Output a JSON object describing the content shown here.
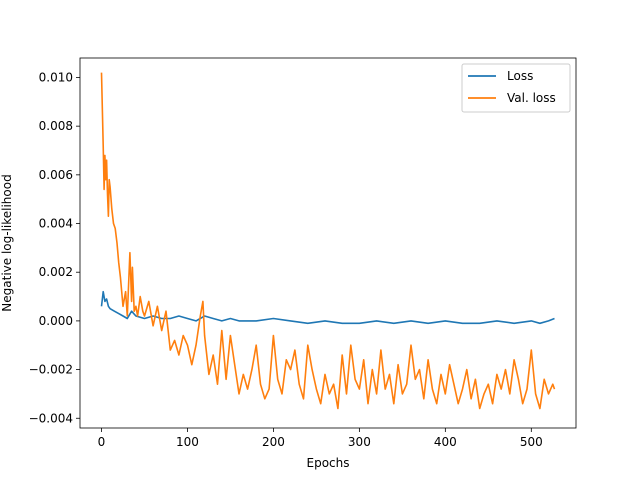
{
  "chart_data": {
    "type": "line",
    "xlabel": "Epochs",
    "ylabel": "Negative log-likelihood",
    "xlim": [
      -25,
      552
    ],
    "ylim": [
      -0.0044,
      0.0108
    ],
    "xticks": [
      0,
      100,
      200,
      300,
      400,
      500
    ],
    "yticks": [
      -0.004,
      -0.002,
      0.0,
      0.002,
      0.004,
      0.006,
      0.008,
      0.01
    ],
    "ytick_labels": [
      "−0.004",
      "−0.002",
      "0.000",
      "0.002",
      "0.004",
      "0.006",
      "0.008",
      "0.010"
    ],
    "xtick_labels": [
      "0",
      "100",
      "200",
      "300",
      "400",
      "500"
    ],
    "grid": false,
    "legend_position": "top-right",
    "series": [
      {
        "name": "Loss",
        "color": "#1f77b4",
        "x": [
          0,
          2,
          4,
          6,
          8,
          10,
          15,
          20,
          25,
          30,
          35,
          40,
          50,
          60,
          70,
          80,
          90,
          100,
          110,
          120,
          130,
          140,
          150,
          160,
          180,
          200,
          220,
          240,
          260,
          280,
          300,
          320,
          340,
          360,
          380,
          400,
          420,
          440,
          460,
          480,
          500,
          510,
          520,
          527
        ],
        "y": [
          0.0006,
          0.0012,
          0.0008,
          0.0009,
          0.0006,
          0.0005,
          0.0004,
          0.0003,
          0.0002,
          0.0001,
          0.0004,
          0.0002,
          0.0001,
          0.0002,
          0.0001,
          0.0001,
          0.0002,
          0.0001,
          0.0,
          0.0002,
          0.0001,
          0.0,
          0.0001,
          0.0,
          0.0,
          0.0001,
          0.0,
          -0.0001,
          0.0,
          -0.0001,
          -0.0001,
          0.0,
          -0.0001,
          0.0,
          -0.0001,
          0.0,
          -0.0001,
          -0.0001,
          0.0,
          -0.0001,
          0.0,
          -0.0001,
          0.0,
          0.0001
        ]
      },
      {
        "name": "Val. loss",
        "color": "#ff7f0e",
        "x": [
          0,
          2,
          3,
          4,
          5,
          6,
          7,
          8,
          9,
          10,
          12,
          14,
          16,
          18,
          20,
          22,
          25,
          28,
          30,
          33,
          35,
          36,
          38,
          40,
          42,
          45,
          48,
          50,
          55,
          60,
          65,
          70,
          75,
          80,
          85,
          90,
          95,
          100,
          105,
          110,
          115,
          118,
          120,
          125,
          130,
          135,
          140,
          145,
          150,
          155,
          160,
          165,
          170,
          175,
          180,
          185,
          190,
          195,
          200,
          205,
          210,
          215,
          220,
          225,
          230,
          235,
          240,
          245,
          250,
          255,
          260,
          265,
          270,
          275,
          280,
          285,
          290,
          295,
          300,
          305,
          310,
          315,
          320,
          325,
          330,
          335,
          340,
          345,
          350,
          355,
          360,
          365,
          370,
          375,
          380,
          385,
          390,
          395,
          400,
          405,
          410,
          415,
          420,
          425,
          430,
          435,
          440,
          445,
          450,
          455,
          460,
          465,
          470,
          475,
          480,
          485,
          490,
          495,
          500,
          505,
          510,
          515,
          520,
          525,
          527
        ],
        "y": [
          0.0102,
          0.0072,
          0.0054,
          0.0068,
          0.0058,
          0.0066,
          0.0052,
          0.0043,
          0.0058,
          0.0055,
          0.0046,
          0.004,
          0.0038,
          0.0032,
          0.0024,
          0.0018,
          0.0006,
          0.0012,
          0.0002,
          0.0028,
          0.0008,
          0.0022,
          0.0004,
          0.0006,
          0.0002,
          0.001,
          0.0004,
          0.0002,
          0.0008,
          -0.0002,
          0.0006,
          -0.0004,
          0.0004,
          -0.0012,
          -0.0008,
          -0.0014,
          -0.0006,
          -0.001,
          -0.0018,
          -0.001,
          0.0002,
          0.0008,
          -0.0006,
          -0.0022,
          -0.0014,
          -0.0026,
          -0.0004,
          -0.0024,
          -0.0006,
          -0.0018,
          -0.003,
          -0.0022,
          -0.0028,
          -0.002,
          -0.001,
          -0.0026,
          -0.0032,
          -0.0028,
          -0.0006,
          -0.0024,
          -0.003,
          -0.0016,
          -0.002,
          -0.0012,
          -0.0026,
          -0.0032,
          -0.001,
          -0.002,
          -0.0028,
          -0.0034,
          -0.0022,
          -0.003,
          -0.0026,
          -0.0036,
          -0.0014,
          -0.003,
          -0.001,
          -0.0024,
          -0.0028,
          -0.0016,
          -0.0034,
          -0.002,
          -0.003,
          -0.0012,
          -0.0028,
          -0.0022,
          -0.0034,
          -0.0018,
          -0.003,
          -0.0026,
          -0.001,
          -0.0024,
          -0.002,
          -0.0032,
          -0.0016,
          -0.0028,
          -0.0034,
          -0.0022,
          -0.003,
          -0.0018,
          -0.0026,
          -0.0034,
          -0.0028,
          -0.002,
          -0.0032,
          -0.0024,
          -0.0036,
          -0.003,
          -0.0026,
          -0.0034,
          -0.0022,
          -0.0028,
          -0.002,
          -0.003,
          -0.0016,
          -0.0024,
          -0.0034,
          -0.0028,
          -0.0012,
          -0.003,
          -0.0036,
          -0.0024,
          -0.003,
          -0.0026,
          -0.0028
        ]
      }
    ]
  }
}
